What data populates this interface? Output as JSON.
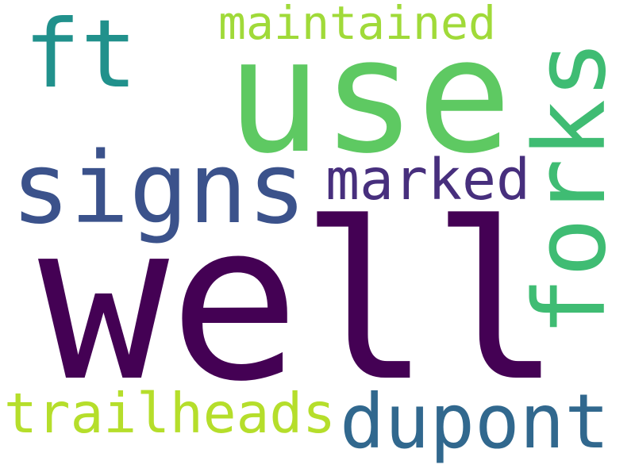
{
  "words": [
    {
      "key": "well",
      "text": "well",
      "color": "#440154"
    },
    {
      "key": "use",
      "text": "use",
      "color": "#5ec962"
    },
    {
      "key": "signs",
      "text": "signs",
      "color": "#3b528b"
    },
    {
      "key": "forks",
      "text": "forks",
      "color": "#3fbc73"
    },
    {
      "key": "dupont",
      "text": "dupont",
      "color": "#31688e"
    },
    {
      "key": "ft",
      "text": "ft",
      "color": "#21918c"
    },
    {
      "key": "trailheads",
      "text": "trailheads",
      "color": "#b5de2b"
    },
    {
      "key": "marked",
      "text": "marked",
      "color": "#472f7d"
    },
    {
      "key": "maintained",
      "text": "maintained",
      "color": "#a0da39"
    }
  ]
}
